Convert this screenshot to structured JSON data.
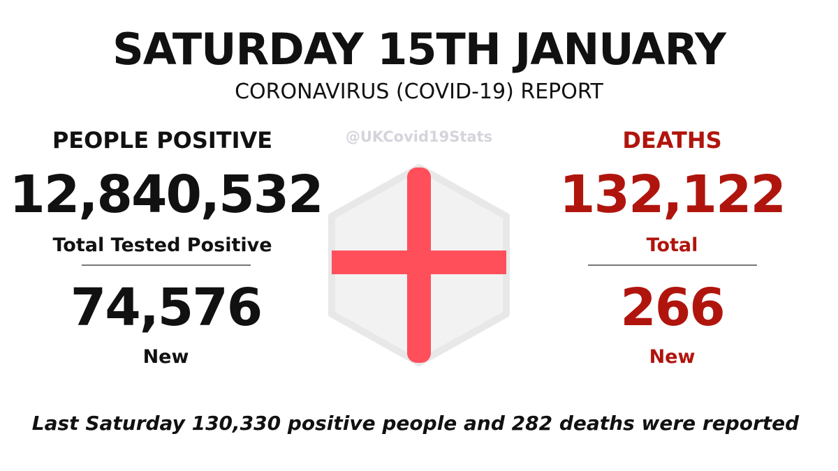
{
  "header": {
    "title": "SATURDAY 15TH JANUARY",
    "subtitle": "CORONAVIRUS (COVID-19) REPORT"
  },
  "watermark": "@UKCovid19Stats",
  "positive": {
    "heading": "PEOPLE POSITIVE",
    "total": "12,840,532",
    "total_label": "Total Tested Positive",
    "new": "74,576",
    "new_label": "New"
  },
  "deaths": {
    "heading": "DEATHS",
    "total": "132,122",
    "total_label": "Total",
    "new": "266",
    "new_label": "New"
  },
  "footer": "Last Saturday 130,330 positive people and 282 deaths were reported"
}
